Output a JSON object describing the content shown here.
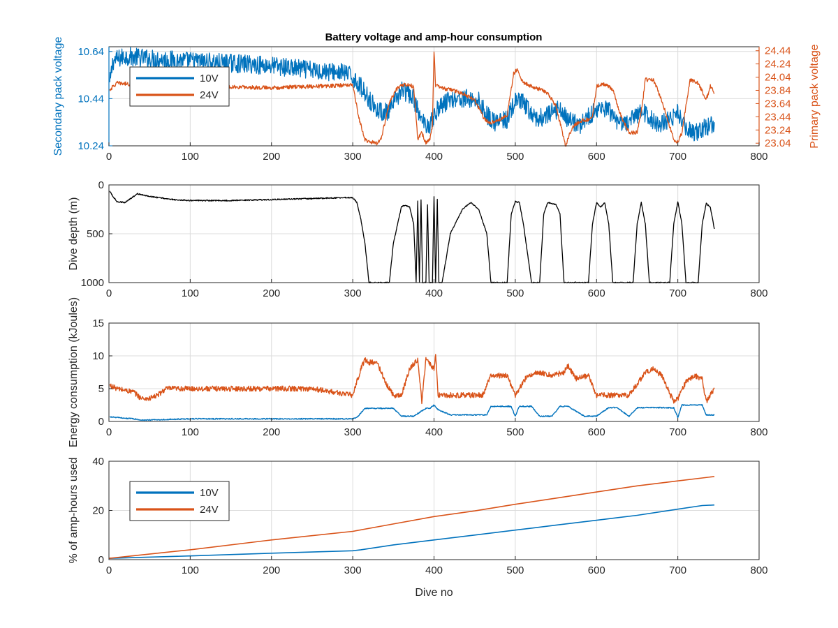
{
  "colors": {
    "ten_v": "#0072BD",
    "twenty_four_v": "#D95319",
    "depth": "#000000",
    "grid": "#dcdcdc",
    "axis": "#262626",
    "right_axis": "#D95319",
    "left_axis_voltage": "#0072BD"
  },
  "figure": {
    "title": "Battery voltage and amp-hour consumption"
  },
  "chart_data": [
    {
      "type": "line",
      "title": "Battery voltage and amp-hour consumption",
      "ylabel": "Secondary pack voltage",
      "y2label": "Primary pack voltage",
      "xlim": [
        0,
        800
      ],
      "ylim": [
        10.24,
        10.66
      ],
      "y2lim": [
        23.0,
        24.5
      ],
      "xticks": [
        0,
        100,
        200,
        300,
        400,
        500,
        600,
        700,
        800
      ],
      "yticks": [
        10.24,
        10.44,
        10.64
      ],
      "ytick_labels": [
        "10.24",
        "10.44",
        "10.64"
      ],
      "y2ticks": [
        23.04,
        23.24,
        23.44,
        23.64,
        23.84,
        24.04,
        24.24,
        24.44
      ],
      "y2tick_labels": [
        "23.04",
        "23.24",
        "23.44",
        "23.64",
        "23.84",
        "24.04",
        "24.24",
        "24.44"
      ],
      "grid": true,
      "legend": {
        "placement": "top-left",
        "entries": [
          "10V",
          "24V"
        ]
      },
      "series": [
        {
          "name": "10V",
          "axis": "left",
          "noise": 0.04,
          "x": [
            1,
            5,
            20,
            50,
            100,
            150,
            200,
            250,
            290,
            300,
            310,
            320,
            330,
            345,
            360,
            375,
            385,
            395,
            405,
            420,
            440,
            455,
            465,
            475,
            490,
            500,
            510,
            525,
            540,
            555,
            565,
            580,
            595,
            605,
            615,
            625,
            640,
            655,
            665,
            675,
            690,
            700,
            710,
            720,
            730,
            740,
            745
          ],
          "y": [
            10.5,
            10.6,
            10.62,
            10.61,
            10.6,
            10.59,
            10.58,
            10.56,
            10.55,
            10.53,
            10.49,
            10.44,
            10.39,
            10.38,
            10.48,
            10.44,
            10.34,
            10.33,
            10.4,
            10.44,
            10.44,
            10.43,
            10.37,
            10.34,
            10.35,
            10.43,
            10.42,
            10.35,
            10.37,
            10.4,
            10.35,
            10.33,
            10.38,
            10.4,
            10.39,
            10.33,
            10.34,
            10.39,
            10.36,
            10.33,
            10.35,
            10.38,
            10.32,
            10.29,
            10.31,
            10.33,
            10.34
          ]
        },
        {
          "name": "24V",
          "axis": "right",
          "noise": 0.03,
          "x": [
            1,
            10,
            30,
            50,
            100,
            200,
            250,
            300,
            308,
            315,
            320,
            330,
            335,
            345,
            355,
            365,
            375,
            380,
            385,
            390,
            395,
            398,
            400,
            402,
            405,
            415,
            430,
            450,
            462,
            470,
            480,
            490,
            498,
            502,
            510,
            520,
            530,
            540,
            550,
            558,
            562,
            566,
            572,
            580,
            590,
            595,
            600,
            610,
            620,
            630,
            640,
            650,
            655,
            660,
            670,
            680,
            690,
            695,
            700,
            705,
            715,
            725,
            735,
            740,
            745
          ],
          "y": [
            23.85,
            23.95,
            23.93,
            23.91,
            23.9,
            23.88,
            23.9,
            23.92,
            23.4,
            23.1,
            23.06,
            23.04,
            23.1,
            23.65,
            23.88,
            23.93,
            23.9,
            23.1,
            23.2,
            23.04,
            23.1,
            23.3,
            24.45,
            23.9,
            23.9,
            23.86,
            23.82,
            23.7,
            23.4,
            23.35,
            23.4,
            23.45,
            24.1,
            24.15,
            23.95,
            23.9,
            23.86,
            23.8,
            23.6,
            23.2,
            23.0,
            23.15,
            23.3,
            23.38,
            23.4,
            23.45,
            23.9,
            23.94,
            23.85,
            23.45,
            23.2,
            23.2,
            23.5,
            24.0,
            24.0,
            23.7,
            23.3,
            23.1,
            23.05,
            23.2,
            24.0,
            23.95,
            23.7,
            23.9,
            23.8
          ]
        }
      ]
    },
    {
      "type": "line",
      "ylabel": "Dive depth (m)",
      "xlim": [
        0,
        800
      ],
      "ylim": [
        0,
        1000
      ],
      "y_reversed": true,
      "xticks": [
        0,
        100,
        200,
        300,
        400,
        500,
        600,
        700,
        800
      ],
      "yticks": [
        0,
        500,
        1000
      ],
      "ytick_labels": [
        "0",
        "500",
        "1000"
      ],
      "grid": true,
      "series": [
        {
          "name": "",
          "noise": 6,
          "x": [
            1,
            5,
            10,
            20,
            30,
            35,
            45,
            60,
            80,
            100,
            150,
            200,
            250,
            290,
            300,
            305,
            310,
            315,
            320,
            330,
            340,
            345,
            350,
            360,
            365,
            370,
            375,
            378,
            380,
            382,
            384,
            386,
            390,
            392,
            394,
            398,
            400,
            402,
            404,
            406,
            410,
            420,
            435,
            445,
            455,
            465,
            470,
            480,
            490,
            495,
            500,
            505,
            510,
            520,
            530,
            535,
            540,
            545,
            550,
            555,
            560,
            565,
            570,
            580,
            590,
            595,
            600,
            605,
            610,
            615,
            620,
            625,
            630,
            640,
            645,
            650,
            655,
            660,
            665,
            670,
            680,
            690,
            695,
            700,
            705,
            710,
            720,
            725,
            730,
            735,
            740,
            745
          ],
          "y": [
            60,
            120,
            170,
            180,
            120,
            90,
            110,
            130,
            150,
            160,
            160,
            150,
            140,
            130,
            130,
            180,
            350,
            600,
            1000,
            1000,
            1000,
            1000,
            600,
            220,
            210,
            230,
            400,
            1000,
            170,
            1000,
            150,
            1000,
            1000,
            200,
            1000,
            1000,
            120,
            1000,
            150,
            1000,
            1000,
            500,
            250,
            180,
            250,
            500,
            1000,
            1000,
            1000,
            300,
            170,
            180,
            400,
            1000,
            1000,
            300,
            180,
            190,
            200,
            300,
            1000,
            1000,
            1000,
            1000,
            1000,
            400,
            180,
            230,
            180,
            400,
            1000,
            1000,
            1000,
            1000,
            1000,
            400,
            180,
            400,
            1000,
            1000,
            1000,
            1000,
            400,
            170,
            400,
            1000,
            1000,
            1000,
            400,
            190,
            230,
            450
          ]
        }
      ]
    },
    {
      "type": "line",
      "ylabel": "Energy consumption (kJoules)",
      "xlim": [
        0,
        800
      ],
      "ylim": [
        0,
        15
      ],
      "xticks": [
        0,
        100,
        200,
        300,
        400,
        500,
        600,
        700,
        800
      ],
      "yticks": [
        0,
        5,
        10,
        15
      ],
      "ytick_labels": [
        "0",
        "5",
        "10",
        "15"
      ],
      "grid": true,
      "series": [
        {
          "name": "24V",
          "noise": 0.4,
          "x": [
            1,
            10,
            30,
            40,
            50,
            60,
            70,
            100,
            150,
            200,
            250,
            300,
            310,
            315,
            320,
            330,
            340,
            350,
            360,
            370,
            380,
            385,
            390,
            400,
            402,
            405,
            420,
            440,
            460,
            470,
            480,
            490,
            500,
            505,
            515,
            530,
            545,
            560,
            565,
            575,
            590,
            600,
            620,
            640,
            660,
            670,
            680,
            695,
            700,
            710,
            720,
            730,
            735,
            745
          ],
          "y": [
            5.5,
            5,
            4.5,
            3.5,
            3.5,
            4,
            5,
            5,
            5,
            5,
            5,
            4,
            8,
            9.5,
            9,
            9,
            6,
            4,
            4,
            8,
            9.5,
            3,
            9.5,
            8,
            10.5,
            4,
            4,
            4,
            4,
            7,
            7,
            7,
            4,
            5,
            7,
            7.5,
            7,
            7.5,
            8.5,
            6.5,
            7,
            4,
            4,
            4,
            7.5,
            8,
            7,
            3,
            3.5,
            6,
            7,
            6.5,
            3,
            5
          ]
        },
        {
          "name": "10V",
          "noise": 0.08,
          "x": [
            1,
            10,
            30,
            40,
            100,
            200,
            300,
            305,
            310,
            315,
            330,
            350,
            360,
            375,
            390,
            395,
            400,
            405,
            420,
            450,
            465,
            470,
            480,
            495,
            500,
            505,
            520,
            530,
            545,
            555,
            565,
            585,
            600,
            615,
            625,
            640,
            650,
            660,
            670,
            695,
            700,
            705,
            720,
            730,
            735,
            745
          ],
          "y": [
            0.7,
            0.6,
            0.4,
            0.2,
            0.4,
            0.4,
            0.4,
            0.6,
            1.3,
            2,
            2,
            2,
            0.8,
            0.8,
            2,
            2,
            2.5,
            1.8,
            1,
            1,
            1,
            2.3,
            2.3,
            2.3,
            0.8,
            2.3,
            2.3,
            0.8,
            0.8,
            2.3,
            2.3,
            0.8,
            0.8,
            2.1,
            2.1,
            0.8,
            2.1,
            2.1,
            2.1,
            2.1,
            0.6,
            2.5,
            2.5,
            2.5,
            1,
            1
          ]
        }
      ]
    },
    {
      "type": "line",
      "xlabel": "Dive no",
      "ylabel": "% of amp-hours used",
      "xlim": [
        0,
        800
      ],
      "ylim": [
        0,
        40
      ],
      "xticks": [
        0,
        100,
        200,
        300,
        400,
        500,
        600,
        700,
        800
      ],
      "yticks": [
        0,
        20,
        40
      ],
      "ytick_labels": [
        "0",
        "20",
        "40"
      ],
      "grid": true,
      "legend": {
        "placement": "top-left",
        "entries": [
          "10V",
          "24V"
        ]
      },
      "series": [
        {
          "name": "10V",
          "x": [
            0,
            100,
            200,
            300,
            310,
            350,
            400,
            450,
            500,
            550,
            600,
            650,
            700,
            730,
            745
          ],
          "y": [
            0.5,
            1.5,
            2.6,
            3.6,
            4,
            6,
            8,
            10,
            12,
            14,
            16,
            18,
            20.5,
            22,
            22.2
          ]
        },
        {
          "name": "24V",
          "x": [
            0,
            100,
            200,
            300,
            350,
            400,
            450,
            500,
            550,
            600,
            650,
            700,
            745
          ],
          "y": [
            0.5,
            4,
            8,
            11.5,
            14.5,
            17.5,
            19.8,
            22.5,
            25,
            27.5,
            30,
            32,
            33.8
          ]
        }
      ]
    }
  ]
}
